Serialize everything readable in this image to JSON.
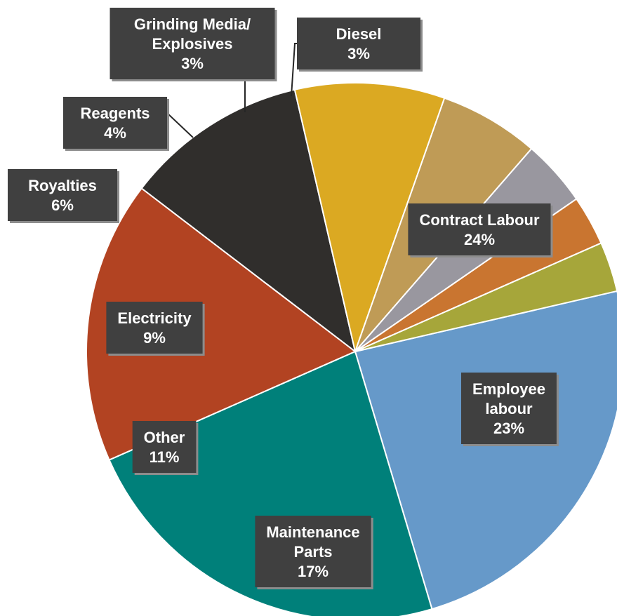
{
  "chart_data": {
    "type": "pie",
    "title": "",
    "slices": [
      {
        "name": "Contract Labour",
        "lines": [
          "Contract Labour"
        ],
        "value": 24,
        "label": "24%",
        "color": "#6699c9"
      },
      {
        "name": "Employee labour",
        "lines": [
          "Employee",
          "labour"
        ],
        "value": 23,
        "label": "23%",
        "color": "#00807a"
      },
      {
        "name": "Maintenance Parts",
        "lines": [
          "Maintenance",
          "Parts"
        ],
        "value": 17,
        "label": "17%",
        "color": "#b24322"
      },
      {
        "name": "Other",
        "lines": [
          "Other"
        ],
        "value": 11,
        "label": "11%",
        "color": "#302e2c"
      },
      {
        "name": "Electricity",
        "lines": [
          "Electricity"
        ],
        "value": 9,
        "label": "9%",
        "color": "#dba922"
      },
      {
        "name": "Royalties",
        "lines": [
          "Royalties"
        ],
        "value": 6,
        "label": "6%",
        "color": "#bf9b56"
      },
      {
        "name": "Reagents",
        "lines": [
          "Reagents"
        ],
        "value": 4,
        "label": "4%",
        "color": "#99979f"
      },
      {
        "name": "Grinding Media/ Explosives",
        "lines": [
          "Grinding Media/",
          "Explosives"
        ],
        "value": 3,
        "label": "3%",
        "color": "#c97530"
      },
      {
        "name": "Diesel",
        "lines": [
          "Diesel"
        ],
        "value": 3,
        "label": "3%",
        "color": "#a6a63a"
      }
    ],
    "legend": "none",
    "data_labels": "outside-callout"
  }
}
